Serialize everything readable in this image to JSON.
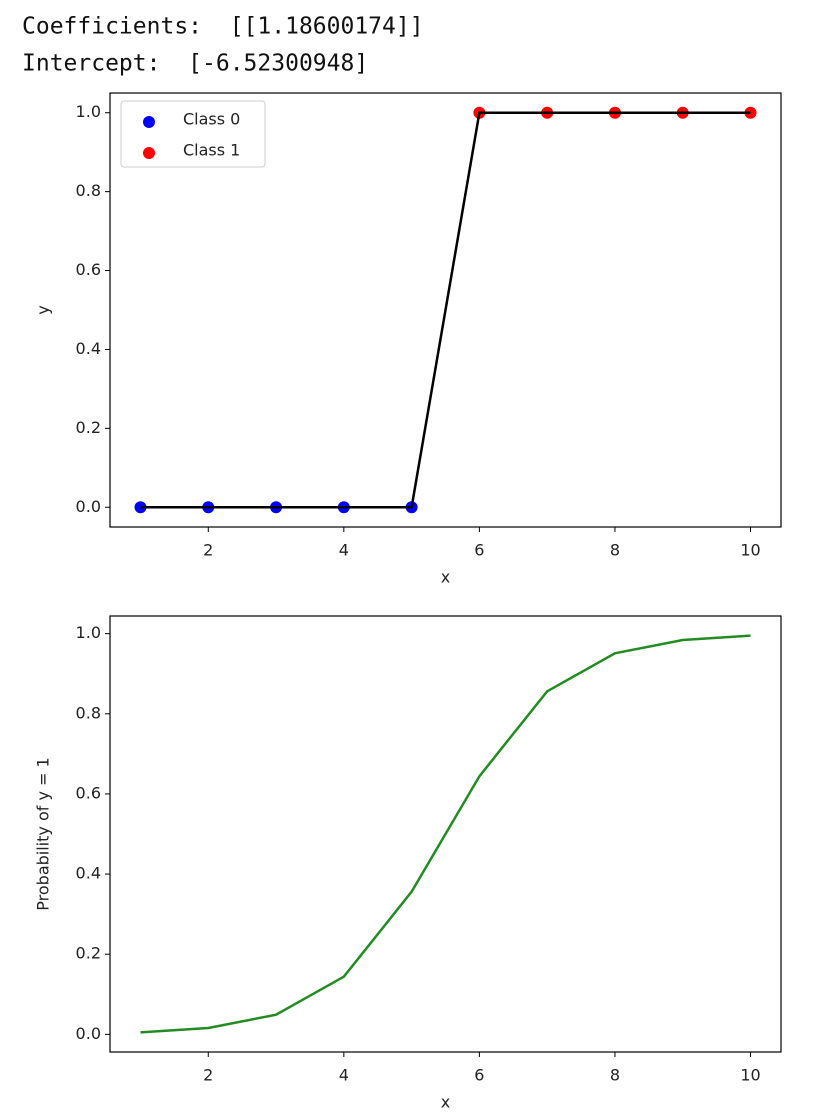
{
  "console": [
    "Coefficients:  [[1.18600174]]",
    "Intercept:  [-6.52300948]"
  ],
  "chart_data": [
    {
      "type": "scatter",
      "xlabel": "x",
      "ylabel": "y",
      "series": [
        {
          "name": "Class 0",
          "color": "#0000ff",
          "x": [
            1,
            2,
            3,
            4,
            5
          ],
          "values": [
            0,
            0,
            0,
            0,
            0
          ]
        },
        {
          "name": "Class 1",
          "color": "#ff0000",
          "x": [
            6,
            7,
            8,
            9,
            10
          ],
          "values": [
            1,
            1,
            1,
            1,
            1
          ]
        }
      ],
      "line": {
        "color": "#000000",
        "x": [
          1,
          2,
          3,
          4,
          5,
          6,
          7,
          8,
          9,
          10
        ],
        "values": [
          0,
          0,
          0,
          0,
          0,
          1,
          1,
          1,
          1,
          1
        ]
      },
      "legend": "upper left",
      "xlim": [
        0.55,
        10.45
      ],
      "xticks": [
        2,
        4,
        6,
        8,
        10
      ],
      "ylim": [
        -0.05,
        1.05
      ],
      "yticks": [
        {
          "value": 0,
          "label": "0.0"
        },
        0.2,
        0.4,
        0.6,
        0.8,
        {
          "value": 1,
          "label": "1.0"
        }
      ]
    },
    {
      "type": "line",
      "xlabel": "x",
      "ylabel": "Probability of y = 1",
      "color": "#228b22",
      "x": [
        1,
        2,
        3,
        4,
        5,
        6,
        7,
        8,
        9,
        10
      ],
      "values": [
        0.005,
        0.016,
        0.049,
        0.144,
        0.356,
        0.644,
        0.856,
        0.951,
        0.984,
        0.995
      ],
      "xlim": [
        0.55,
        10.45
      ],
      "xticks": [
        2,
        4,
        6,
        8,
        10
      ],
      "ylim": [
        -0.044,
        1.044
      ],
      "yticks": [
        {
          "value": 0,
          "label": "0.0"
        },
        0.2,
        0.4,
        0.6,
        0.8,
        {
          "value": 1,
          "label": "1.0"
        }
      ]
    }
  ]
}
